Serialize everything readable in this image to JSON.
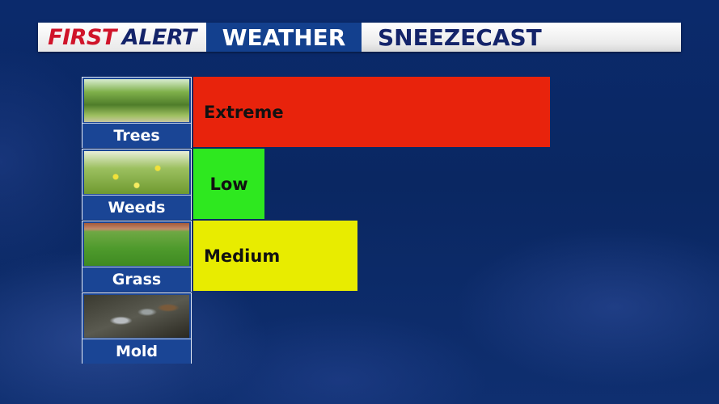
{
  "header": {
    "first": "FIRST",
    "alert": "ALERT",
    "weather": "WEATHER",
    "title": "SNEEZECAST"
  },
  "colors": {
    "extreme": "#e8230c",
    "low": "#2ee81f",
    "medium": "#e8ec00",
    "header_red": "#d0142a",
    "header_navy": "#14246a",
    "tile_blue": "#1a4595"
  },
  "chart_data": {
    "type": "bar",
    "orientation": "horizontal",
    "categories": [
      "Trees",
      "Weeds",
      "Grass",
      "Mold"
    ],
    "levels": [
      "Extreme",
      "Low",
      "Medium",
      ""
    ],
    "values": [
      1.0,
      0.2,
      0.46,
      0
    ],
    "bar_colors": [
      "#e8230c",
      "#2ee81f",
      "#e8ec00",
      ""
    ],
    "xlim": [
      0,
      1
    ],
    "grid": false,
    "icons": [
      "trees-photo",
      "weeds-photo",
      "grass-photo",
      "mold-photo"
    ]
  }
}
